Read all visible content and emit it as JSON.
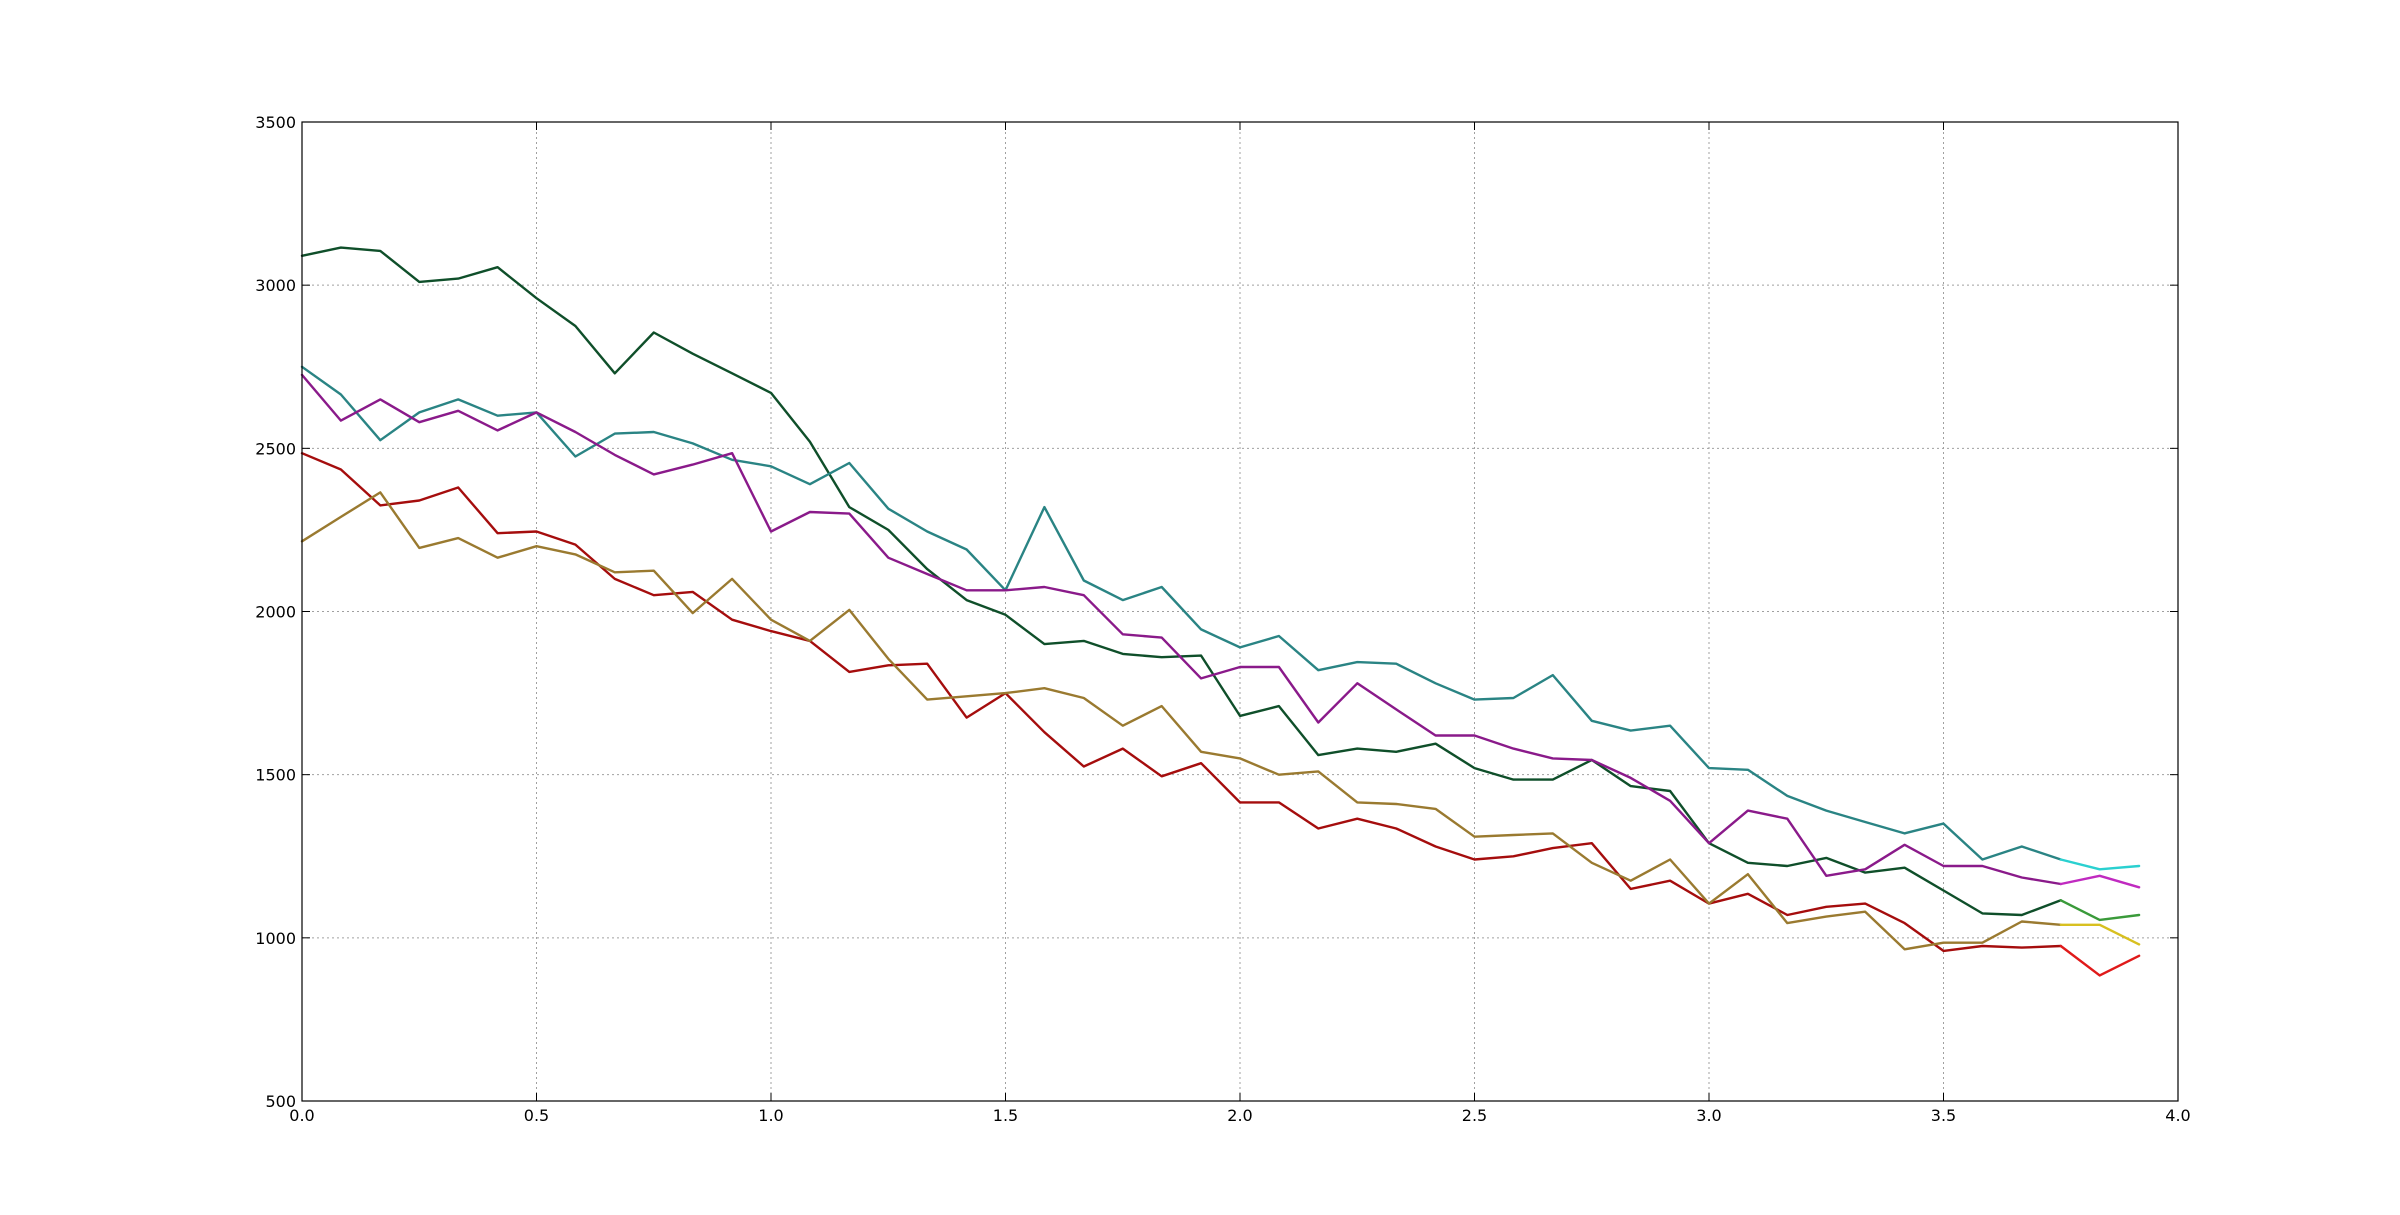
{
  "chart_data": {
    "type": "line",
    "title": "",
    "xlabel": "",
    "ylabel": "",
    "xlim": [
      0.0,
      4.0
    ],
    "ylim": [
      500,
      3500
    ],
    "xticks": [
      0.0,
      0.5,
      1.0,
      1.5,
      2.0,
      2.5,
      3.0,
      3.5,
      4.0
    ],
    "xtick_labels": [
      "0.0",
      "0.5",
      "1.0",
      "1.5",
      "2.0",
      "2.5",
      "3.0",
      "3.5",
      "4.0"
    ],
    "yticks": [
      500,
      1000,
      1500,
      2000,
      2500,
      3000,
      3500
    ],
    "ytick_labels": [
      "500",
      "1000",
      "1500",
      "2000",
      "2500",
      "3000",
      "3500"
    ],
    "grid": true,
    "legend": "none",
    "x": [
      0.0,
      0.083,
      0.167,
      0.25,
      0.333,
      0.417,
      0.5,
      0.583,
      0.667,
      0.75,
      0.833,
      0.917,
      1.0,
      1.083,
      1.167,
      1.25,
      1.333,
      1.417,
      1.5,
      1.583,
      1.667,
      1.75,
      1.833,
      1.917,
      2.0,
      2.083,
      2.167,
      2.25,
      2.333,
      2.417,
      2.5,
      2.583,
      2.667,
      2.75,
      2.833,
      2.917,
      3.0,
      3.083,
      3.167,
      3.25,
      3.333,
      3.417,
      3.5,
      3.583,
      3.667,
      3.75,
      3.833,
      3.917
    ],
    "series": [
      {
        "color": "#0f4f2a",
        "end_color": "#3a9a3a",
        "values": [
          3090,
          3115,
          3105,
          3010,
          3020,
          3055,
          2960,
          2875,
          2730,
          2855,
          2790,
          2730,
          2670,
          2520,
          2320,
          2250,
          2130,
          2035,
          1990,
          1900,
          1910,
          1870,
          1860,
          1865,
          1680,
          1710,
          1560,
          1580,
          1570,
          1595,
          1520,
          1485,
          1485,
          1545,
          1465,
          1450,
          1290,
          1230,
          1220,
          1245,
          1200,
          1215,
          1145,
          1075,
          1070,
          1115,
          1055,
          1070
        ]
      },
      {
        "color": "#2a8484",
        "end_color": "#2ad0d0",
        "values": [
          2750,
          2665,
          2525,
          2610,
          2650,
          2600,
          2610,
          2475,
          2545,
          2550,
          2515,
          2465,
          2445,
          2390,
          2455,
          2315,
          2245,
          2190,
          2065,
          2320,
          2095,
          2035,
          2075,
          1945,
          1890,
          1925,
          1820,
          1845,
          1840,
          1780,
          1730,
          1735,
          1805,
          1665,
          1635,
          1650,
          1520,
          1515,
          1435,
          1390,
          1355,
          1320,
          1350,
          1240,
          1280,
          1240,
          1210,
          1220
        ]
      },
      {
        "color": "#8a1a8a",
        "end_color": "#c02ac0",
        "values": [
          2725,
          2585,
          2650,
          2580,
          2615,
          2555,
          2610,
          2550,
          2480,
          2420,
          2450,
          2485,
          2245,
          2305,
          2300,
          2165,
          2115,
          2065,
          2065,
          2075,
          2050,
          1930,
          1920,
          1795,
          1830,
          1830,
          1660,
          1780,
          1700,
          1620,
          1620,
          1580,
          1550,
          1545,
          1490,
          1420,
          1290,
          1390,
          1365,
          1190,
          1210,
          1285,
          1220,
          1220,
          1185,
          1165,
          1190,
          1155
        ]
      },
      {
        "color": "#a50d0d",
        "end_color": "#e01a1a",
        "values": [
          2485,
          2435,
          2325,
          2340,
          2380,
          2240,
          2245,
          2205,
          2100,
          2050,
          2060,
          1975,
          1940,
          1910,
          1815,
          1835,
          1840,
          1675,
          1750,
          1630,
          1525,
          1580,
          1495,
          1535,
          1415,
          1415,
          1335,
          1365,
          1335,
          1280,
          1240,
          1250,
          1275,
          1290,
          1150,
          1175,
          1105,
          1135,
          1070,
          1095,
          1105,
          1045,
          960,
          975,
          970,
          975,
          885,
          945
        ]
      },
      {
        "color": "#9a7a30",
        "end_color": "#d8c020",
        "values": [
          2215,
          2290,
          2365,
          2195,
          2225,
          2165,
          2200,
          2175,
          2120,
          2125,
          1995,
          2100,
          1975,
          1910,
          2005,
          1855,
          1730,
          1740,
          1750,
          1765,
          1735,
          1650,
          1710,
          1570,
          1550,
          1500,
          1510,
          1415,
          1410,
          1395,
          1310,
          1315,
          1320,
          1230,
          1175,
          1240,
          1105,
          1195,
          1045,
          1065,
          1080,
          965,
          985,
          985,
          1050,
          1040,
          1040,
          980
        ]
      }
    ]
  }
}
